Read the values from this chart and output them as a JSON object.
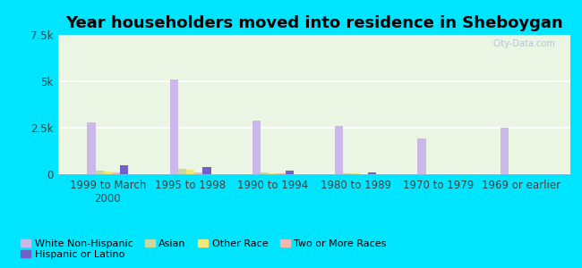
{
  "title": "Year householders moved into residence in Sheboygan",
  "categories": [
    "1999 to March\n2000",
    "1995 to 1998",
    "1990 to 1994",
    "1980 to 1989",
    "1970 to 1979",
    "1969 or earlier"
  ],
  "series": {
    "White Non-Hispanic": [
      2800,
      5100,
      2900,
      2600,
      1900,
      2500
    ],
    "Asian": [
      200,
      300,
      100,
      50,
      0,
      0
    ],
    "Other Race": [
      150,
      250,
      50,
      30,
      0,
      0
    ],
    "Two or More Races": [
      100,
      100,
      30,
      20,
      0,
      0
    ],
    "Hispanic or Latino": [
      500,
      400,
      200,
      100,
      0,
      0
    ]
  },
  "colors": {
    "White Non-Hispanic": "#c9b8e8",
    "Asian": "#c8d8a0",
    "Other Race": "#f0e87a",
    "Two or More Races": "#f0b8b0",
    "Hispanic or Latino": "#7060c8"
  },
  "ylim": [
    0,
    7500
  ],
  "yticks": [
    0,
    2500,
    5000,
    7500
  ],
  "ytick_labels": [
    "0",
    "2.5k",
    "5k",
    "7.5k"
  ],
  "background_outer": "#00e5ff",
  "background_plot": "#eaf5e4",
  "watermark": "City-Data.com",
  "title_fontsize": 13,
  "tick_fontsize": 8.5,
  "legend_fontsize": 8
}
